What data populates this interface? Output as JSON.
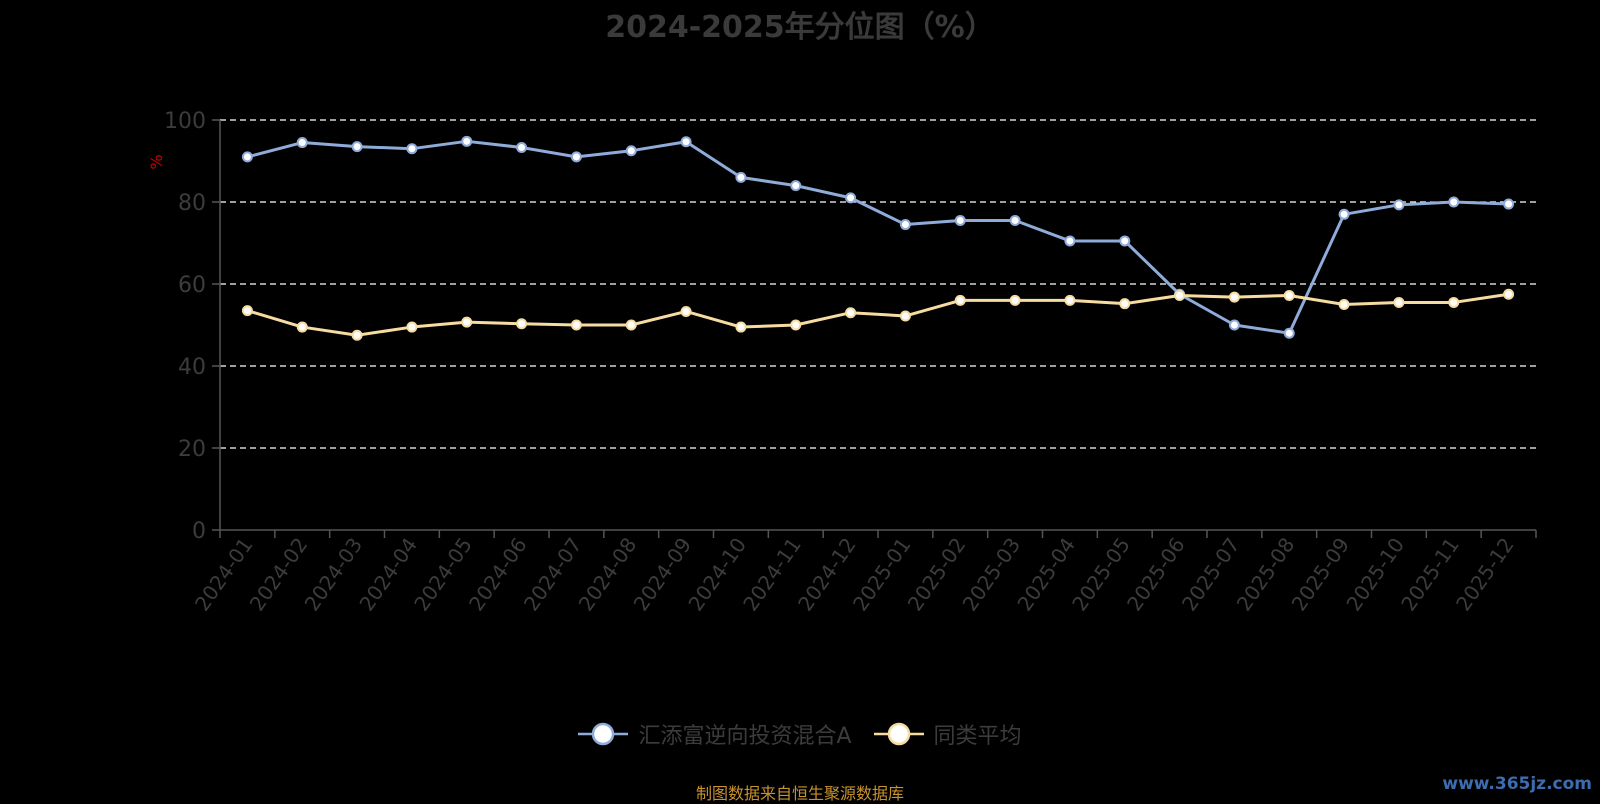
{
  "colors": {
    "background": "#000000",
    "series1": "#8fabd9",
    "series2": "#f7dca1",
    "gridline": "#ffffff",
    "axis": "#555555",
    "tick_label": "#3c3c3c",
    "unit_label": "#cc0000",
    "source": "#c8922f",
    "watermark": "#3d6db0"
  },
  "chart_data": {
    "type": "line",
    "title": "2024-2025年分位图（%）",
    "ylabel": "%",
    "ylim": [
      0,
      100
    ],
    "yticks": [
      "0",
      "20",
      "40",
      "60",
      "80",
      "100"
    ],
    "grid": "horizontal dashed",
    "legend_position": "bottom-center",
    "categories": [
      "2024-01",
      "2024-02",
      "2024-03",
      "2024-04",
      "2024-05",
      "2024-06",
      "2024-07",
      "2024-08",
      "2024-09",
      "2024-10",
      "2024-11",
      "2024-12",
      "2025-01",
      "2025-02",
      "2025-03",
      "2025-04",
      "2025-05",
      "2025-06",
      "2025-07",
      "2025-08",
      "2025-09",
      "2025-10",
      "2025-11",
      "2025-12"
    ],
    "series": [
      {
        "name": "汇添富逆向投资混合A",
        "values": [
          91,
          94.5,
          93.5,
          93,
          94.8,
          93.3,
          91,
          92.5,
          94.7,
          86,
          84,
          81,
          74.5,
          75.5,
          75.5,
          70.5,
          70.5,
          57.5,
          50,
          48,
          77,
          79.3,
          80,
          79.5
        ]
      },
      {
        "name": "同类平均",
        "values": [
          53.5,
          49.5,
          47.5,
          49.5,
          50.7,
          50.3,
          50,
          50,
          53.3,
          49.5,
          50,
          53,
          52.2,
          56,
          56,
          56,
          55.2,
          57.2,
          56.8,
          57.2,
          55,
          55.5,
          55.5,
          57.5
        ]
      }
    ]
  },
  "footer": {
    "source_text": "制图数据来自恒生聚源数据库",
    "watermark": "www.365jz.com"
  }
}
